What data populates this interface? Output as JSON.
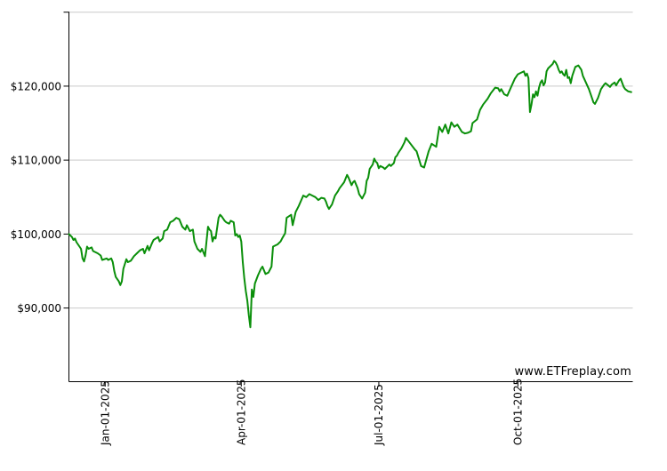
{
  "page": {
    "background": "#ffffff"
  },
  "watermark": {
    "text": "www.ETFreplay.com"
  },
  "colors": {
    "line": "#0a8f0a",
    "gridline": "#c9c9c9",
    "axis": "#000000",
    "text": "#000000"
  },
  "chart_data": {
    "type": "line",
    "title": "",
    "xlabel": "",
    "ylabel": "",
    "legend": "none",
    "grid": "horizontal-only",
    "x_axis": {
      "unit": "days-since-2024-12-08",
      "range": [
        0,
        373
      ],
      "ticks": [
        {
          "day": 24,
          "label": "Jan-01-2025"
        },
        {
          "day": 114,
          "label": "Apr-01-2025"
        },
        {
          "day": 205,
          "label": "Jul-01-2025"
        },
        {
          "day": 297,
          "label": "Oct-01-2025"
        }
      ]
    },
    "y_axis": {
      "unit": "USD",
      "range": [
        80040,
        130060
      ],
      "gridline_values": [
        90000,
        100000,
        110000,
        120000,
        130000
      ],
      "axis_tick_values": [
        90000,
        100000,
        110000,
        120000,
        130000
      ],
      "tick_labels": [
        {
          "value": 90000,
          "label": "$90,000"
        },
        {
          "value": 100000,
          "label": "$100,000"
        },
        {
          "value": 110000,
          "label": "$110,000"
        },
        {
          "value": 120000,
          "label": "$120,000"
        }
      ]
    },
    "series": [
      {
        "name": "portfolio-value",
        "color": "#0a8f0a",
        "points": [
          [
            0,
            100000
          ],
          [
            2,
            99600
          ],
          [
            3,
            99200
          ],
          [
            4,
            99400
          ],
          [
            5,
            98900
          ],
          [
            6,
            98600
          ],
          [
            8,
            98000
          ],
          [
            9,
            96700
          ],
          [
            10,
            96300
          ],
          [
            11,
            97100
          ],
          [
            12,
            98300
          ],
          [
            13,
            98000
          ],
          [
            15,
            98200
          ],
          [
            16,
            97700
          ],
          [
            19,
            97400
          ],
          [
            21,
            97100
          ],
          [
            22,
            96500
          ],
          [
            25,
            96700
          ],
          [
            26,
            96500
          ],
          [
            28,
            96700
          ],
          [
            29,
            96200
          ],
          [
            30,
            95000
          ],
          [
            31,
            94200
          ],
          [
            33,
            93600
          ],
          [
            34,
            93100
          ],
          [
            35,
            93600
          ],
          [
            36,
            95300
          ],
          [
            38,
            96600
          ],
          [
            39,
            96200
          ],
          [
            41,
            96400
          ],
          [
            43,
            97000
          ],
          [
            45,
            97400
          ],
          [
            47,
            97800
          ],
          [
            49,
            98000
          ],
          [
            50,
            97400
          ],
          [
            52,
            98400
          ],
          [
            53,
            97800
          ],
          [
            55,
            98800
          ],
          [
            56,
            99200
          ],
          [
            59,
            99600
          ],
          [
            60,
            99000
          ],
          [
            62,
            99400
          ],
          [
            63,
            100400
          ],
          [
            65,
            100600
          ],
          [
            67,
            101600
          ],
          [
            69,
            101800
          ],
          [
            71,
            102200
          ],
          [
            73,
            102000
          ],
          [
            75,
            101000
          ],
          [
            77,
            100600
          ],
          [
            78,
            101200
          ],
          [
            80,
            100400
          ],
          [
            82,
            100600
          ],
          [
            83,
            99000
          ],
          [
            85,
            98000
          ],
          [
            87,
            97600
          ],
          [
            88,
            98000
          ],
          [
            90,
            97000
          ],
          [
            91,
            99000
          ],
          [
            92,
            101000
          ],
          [
            93,
            100600
          ],
          [
            94,
            100400
          ],
          [
            95,
            99000
          ],
          [
            96,
            99600
          ],
          [
            97,
            99400
          ],
          [
            99,
            102200
          ],
          [
            100,
            102600
          ],
          [
            101,
            102400
          ],
          [
            103,
            101800
          ],
          [
            104,
            101600
          ],
          [
            106,
            101400
          ],
          [
            107,
            101800
          ],
          [
            109,
            101600
          ],
          [
            110,
            99800
          ],
          [
            111,
            100000
          ],
          [
            112,
            99600
          ],
          [
            113,
            99800
          ],
          [
            114,
            99000
          ],
          [
            115,
            96200
          ],
          [
            116,
            94000
          ],
          [
            117,
            92300
          ],
          [
            118,
            91000
          ],
          [
            119,
            89000
          ],
          [
            120,
            87400
          ],
          [
            121,
            92500
          ],
          [
            122,
            91500
          ],
          [
            123,
            93300
          ],
          [
            125,
            94400
          ],
          [
            127,
            95300
          ],
          [
            128,
            95600
          ],
          [
            130,
            94600
          ],
          [
            132,
            94800
          ],
          [
            134,
            95600
          ],
          [
            135,
            98300
          ],
          [
            138,
            98600
          ],
          [
            140,
            99000
          ],
          [
            141,
            99400
          ],
          [
            143,
            100100
          ],
          [
            144,
            102200
          ],
          [
            147,
            102600
          ],
          [
            148,
            101200
          ],
          [
            150,
            103000
          ],
          [
            152,
            103800
          ],
          [
            155,
            105200
          ],
          [
            157,
            105000
          ],
          [
            159,
            105400
          ],
          [
            161,
            105200
          ],
          [
            163,
            105000
          ],
          [
            165,
            104600
          ],
          [
            167,
            104900
          ],
          [
            169,
            104800
          ],
          [
            170,
            104400
          ],
          [
            171,
            103800
          ],
          [
            172,
            103400
          ],
          [
            174,
            104000
          ],
          [
            176,
            105200
          ],
          [
            178,
            105800
          ],
          [
            179,
            106200
          ],
          [
            182,
            107000
          ],
          [
            184,
            108000
          ],
          [
            185,
            107600
          ],
          [
            187,
            106600
          ],
          [
            188,
            107000
          ],
          [
            189,
            107200
          ],
          [
            191,
            106200
          ],
          [
            192,
            105400
          ],
          [
            194,
            104800
          ],
          [
            195,
            105200
          ],
          [
            196,
            105600
          ],
          [
            197,
            107200
          ],
          [
            198,
            107600
          ],
          [
            199,
            108800
          ],
          [
            201,
            109400
          ],
          [
            202,
            110200
          ],
          [
            203,
            109800
          ],
          [
            204,
            109600
          ],
          [
            205,
            108900
          ],
          [
            206,
            109200
          ],
          [
            208,
            109000
          ],
          [
            209,
            108800
          ],
          [
            211,
            109200
          ],
          [
            212,
            109400
          ],
          [
            213,
            109200
          ],
          [
            214,
            109400
          ],
          [
            215,
            109600
          ],
          [
            216,
            110400
          ],
          [
            217,
            110600
          ],
          [
            218,
            111000
          ],
          [
            220,
            111600
          ],
          [
            222,
            112400
          ],
          [
            223,
            113000
          ],
          [
            226,
            112200
          ],
          [
            229,
            111400
          ],
          [
            230,
            111200
          ],
          [
            233,
            109200
          ],
          [
            235,
            109000
          ],
          [
            238,
            111200
          ],
          [
            240,
            112200
          ],
          [
            243,
            111800
          ],
          [
            245,
            114500
          ],
          [
            247,
            113800
          ],
          [
            249,
            114800
          ],
          [
            251,
            113600
          ],
          [
            253,
            115100
          ],
          [
            255,
            114500
          ],
          [
            257,
            114800
          ],
          [
            260,
            113800
          ],
          [
            262,
            113600
          ],
          [
            264,
            113700
          ],
          [
            266,
            113900
          ],
          [
            267,
            115000
          ],
          [
            270,
            115500
          ],
          [
            272,
            116800
          ],
          [
            274,
            117500
          ],
          [
            277,
            118300
          ],
          [
            279,
            119000
          ],
          [
            282,
            119800
          ],
          [
            284,
            119700
          ],
          [
            285,
            119300
          ],
          [
            286,
            119600
          ],
          [
            288,
            118900
          ],
          [
            290,
            118700
          ],
          [
            293,
            120100
          ],
          [
            295,
            121000
          ],
          [
            297,
            121600
          ],
          [
            299,
            121800
          ],
          [
            301,
            122000
          ],
          [
            302,
            121400
          ],
          [
            303,
            121700
          ],
          [
            304,
            121100
          ],
          [
            305,
            116500
          ],
          [
            306,
            117500
          ],
          [
            307,
            118900
          ],
          [
            308,
            118500
          ],
          [
            309,
            119300
          ],
          [
            310,
            118700
          ],
          [
            311,
            119800
          ],
          [
            312,
            120500
          ],
          [
            313,
            120800
          ],
          [
            314,
            120100
          ],
          [
            315,
            120500
          ],
          [
            316,
            122000
          ],
          [
            317,
            122400
          ],
          [
            320,
            123000
          ],
          [
            321,
            123400
          ],
          [
            322,
            123200
          ],
          [
            323,
            122800
          ],
          [
            324,
            122200
          ],
          [
            325,
            121800
          ],
          [
            326,
            122000
          ],
          [
            327,
            121600
          ],
          [
            328,
            121400
          ],
          [
            329,
            122200
          ],
          [
            330,
            121100
          ],
          [
            331,
            121200
          ],
          [
            332,
            120400
          ],
          [
            333,
            121400
          ],
          [
            335,
            122600
          ],
          [
            337,
            122800
          ],
          [
            339,
            122200
          ],
          [
            340,
            121400
          ],
          [
            342,
            120500
          ],
          [
            344,
            119600
          ],
          [
            346,
            118400
          ],
          [
            347,
            117800
          ],
          [
            348,
            117600
          ],
          [
            350,
            118400
          ],
          [
            352,
            119600
          ],
          [
            354,
            120200
          ],
          [
            355,
            120400
          ],
          [
            358,
            119900
          ],
          [
            359,
            120200
          ],
          [
            361,
            120500
          ],
          [
            362,
            120100
          ],
          [
            364,
            120800
          ],
          [
            365,
            121000
          ],
          [
            367,
            119900
          ],
          [
            368,
            119600
          ],
          [
            370,
            119300
          ],
          [
            372,
            119200
          ]
        ]
      }
    ]
  }
}
